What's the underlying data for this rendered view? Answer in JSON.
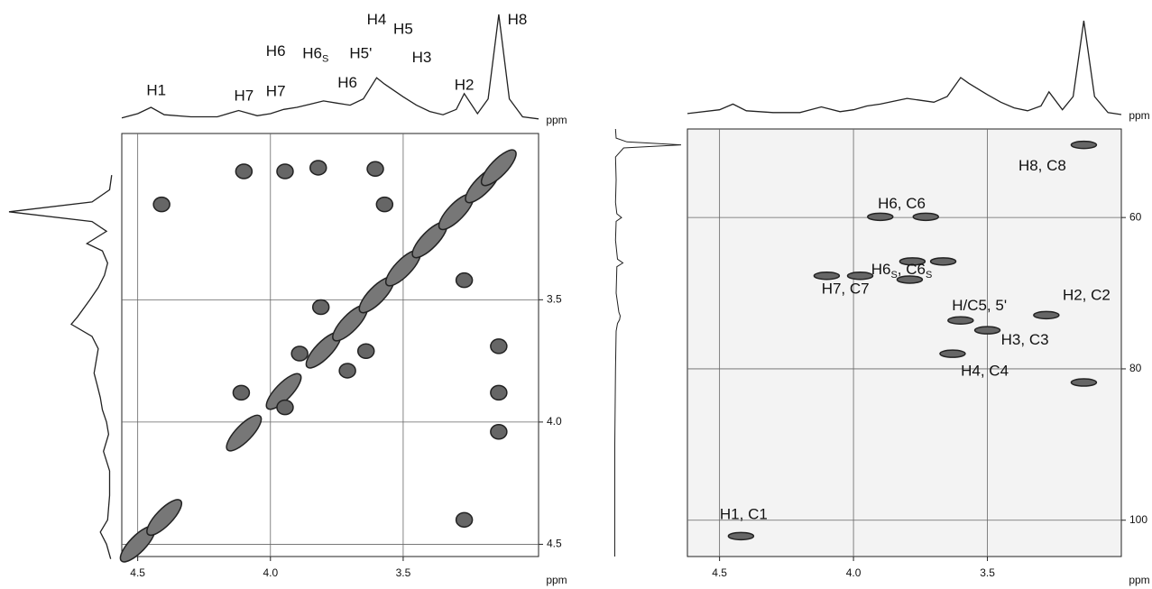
{
  "chart_data": [
    {
      "type": "contour",
      "xlabel": "ppm",
      "projection_label": "ppm",
      "xlim": [
        4.56,
        2.99
      ],
      "ylim": [
        2.82,
        4.55
      ],
      "xticks": [
        4.5,
        {
          "value": 4,
          "label": "4.0"
        },
        3.5
      ],
      "yticks": [
        3.5,
        {
          "value": 4,
          "label": "4.0"
        },
        4.5
      ],
      "grid": true,
      "color": "#222",
      "peaks": {
        "x": [
          4.1,
          3.945,
          3.82,
          3.605,
          4.41,
          3.57,
          3.27,
          3.81,
          3.14,
          3.14,
          3.14,
          4.11,
          3.945,
          3.71,
          3.27,
          3.64,
          3.89
        ],
        "y": [
          2.975,
          2.975,
          2.96,
          2.965,
          3.11,
          3.11,
          3.42,
          3.53,
          3.69,
          3.88,
          4.04,
          3.88,
          3.94,
          3.79,
          4.4,
          3.71,
          3.72
        ]
      },
      "diagonal": {
        "x": [
          4.5,
          4.4,
          4.1,
          3.95,
          3.8,
          3.7,
          3.6,
          3.5,
          3.4,
          3.3,
          3.2,
          3.14
        ],
        "y": [
          4.499,
          4.39,
          4.045,
          3.875,
          3.706,
          3.595,
          3.48,
          3.37,
          3.255,
          3.14,
          3.03,
          2.96
        ]
      },
      "projection": {
        "x": [
          4.56,
          4.5,
          4.45,
          4.4,
          4.3,
          4.2,
          4.12,
          4.05,
          4.0,
          3.95,
          3.9,
          3.85,
          3.8,
          3.75,
          3.7,
          3.65,
          3.6,
          3.57,
          3.5,
          3.45,
          3.4,
          3.35,
          3.3,
          3.27,
          3.22,
          3.18,
          3.14,
          3.1,
          3.05,
          2.99
        ],
        "values": [
          2,
          6,
          12,
          5,
          3,
          3,
          9,
          4,
          6,
          10,
          12,
          15,
          18,
          16,
          14,
          20,
          40,
          34,
          22,
          14,
          8,
          5,
          10,
          25,
          6,
          20,
          100,
          20,
          3,
          1
        ]
      },
      "annotations": [
        {
          "segments": [
            {
              "text": "H1"
            }
          ],
          "x": 4.43,
          "y": 27
        },
        {
          "segments": [
            {
              "text": "H7"
            }
          ],
          "x": 4.1,
          "y": 22
        },
        {
          "segments": [
            {
              "text": "H7"
            }
          ],
          "x": 3.98,
          "y": 26
        },
        {
          "segments": [
            {
              "text": "H6"
            }
          ],
          "x": 3.98,
          "y": 64
        },
        {
          "segments": [
            {
              "text": "H6"
            },
            {
              "text": "S",
              "sub": true
            }
          ],
          "x": 3.83,
          "y": 62
        },
        {
          "segments": [
            {
              "text": "H6"
            }
          ],
          "x": 3.71,
          "y": 34
        },
        {
          "segments": [
            {
              "text": "H5'"
            }
          ],
          "x": 3.66,
          "y": 62
        },
        {
          "segments": [
            {
              "text": "H4"
            }
          ],
          "x": 3.6,
          "y": 94
        },
        {
          "segments": [
            {
              "text": "H5"
            }
          ],
          "x": 3.5,
          "y": 85
        },
        {
          "segments": [
            {
              "text": "H3"
            }
          ],
          "x": 3.43,
          "y": 58
        },
        {
          "segments": [
            {
              "text": "H2"
            }
          ],
          "x": 3.27,
          "y": 32
        },
        {
          "segments": [
            {
              "text": "H8"
            }
          ],
          "x": 3.07,
          "y": 94
        }
      ]
    },
    {
      "type": "contour",
      "xlabel": "ppm",
      "projection_label": "ppm",
      "xlim": [
        4.62,
        3.0
      ],
      "ylim": [
        48.3,
        104.8
      ],
      "xticks": [
        4.5,
        {
          "value": 4,
          "label": "4.0"
        },
        3.5
      ],
      "yticks": [
        60,
        80,
        100
      ],
      "grid": true,
      "color": "#222",
      "background": "#f3f3f3",
      "peaks": {
        "x": [
          4.42,
          3.9,
          3.73,
          4.1,
          3.975,
          3.79,
          3.665,
          3.78,
          3.28,
          3.6,
          3.5,
          3.63,
          3.14,
          3.14
        ],
        "y": [
          102.1,
          59.9,
          59.9,
          67.7,
          67.7,
          68.2,
          65.8,
          65.8,
          72.9,
          73.6,
          74.9,
          78.0,
          81.8,
          50.4
        ]
      },
      "projection": {
        "x": [
          4.62,
          4.5,
          4.45,
          4.4,
          4.3,
          4.2,
          4.12,
          4.05,
          4.0,
          3.95,
          3.9,
          3.85,
          3.8,
          3.75,
          3.7,
          3.65,
          3.6,
          3.57,
          3.5,
          3.45,
          3.4,
          3.35,
          3.3,
          3.27,
          3.22,
          3.18,
          3.14,
          3.1,
          3.05,
          3.0
        ],
        "values": [
          2,
          6,
          12,
          5,
          3,
          3,
          9,
          4,
          6,
          10,
          12,
          15,
          18,
          16,
          14,
          20,
          40,
          34,
          22,
          14,
          8,
          5,
          10,
          25,
          6,
          20,
          100,
          20,
          3,
          1
        ]
      },
      "side_projection": {
        "y": [
          48.3,
          49.5,
          50,
          50.4,
          50.8,
          52,
          55,
          58,
          59.5,
          60,
          60.5,
          63,
          65.5,
          66,
          66.5,
          70,
          72.5,
          73,
          73.5,
          74,
          75,
          80,
          90,
          100,
          104.8
        ],
        "values": [
          3,
          4,
          20,
          100,
          15,
          3,
          4,
          3,
          5,
          12,
          4,
          3,
          6,
          14,
          5,
          4,
          8,
          10,
          9,
          6,
          4,
          3,
          2,
          2,
          2
        ]
      },
      "annotations": [
        {
          "segments": [
            {
              "text": "H8, C8"
            }
          ],
          "x": 3.295,
          "y": 53.3
        },
        {
          "segments": [
            {
              "text": "H6, C6"
            }
          ],
          "x": 3.82,
          "y": 58.3
        },
        {
          "segments": [
            {
              "text": "H6"
            },
            {
              "text": "S",
              "sub": true
            },
            {
              "text": ", C6"
            },
            {
              "text": "S",
              "sub": true
            }
          ],
          "x": 3.82,
          "y": 67.0
        },
        {
          "segments": [
            {
              "text": "H7, C7"
            }
          ],
          "x": 4.03,
          "y": 69.6
        },
        {
          "segments": [
            {
              "text": "H/C5, 5'"
            }
          ],
          "x": 3.53,
          "y": 71.8
        },
        {
          "segments": [
            {
              "text": "H2, C2"
            }
          ],
          "x": 3.13,
          "y": 70.4
        },
        {
          "segments": [
            {
              "text": "H3, C3"
            }
          ],
          "x": 3.36,
          "y": 76.3
        },
        {
          "segments": [
            {
              "text": "H4, C4"
            }
          ],
          "x": 3.51,
          "y": 80.4
        },
        {
          "segments": [
            {
              "text": "H1, C1"
            }
          ],
          "x": 4.41,
          "y": 99.4
        }
      ]
    }
  ]
}
